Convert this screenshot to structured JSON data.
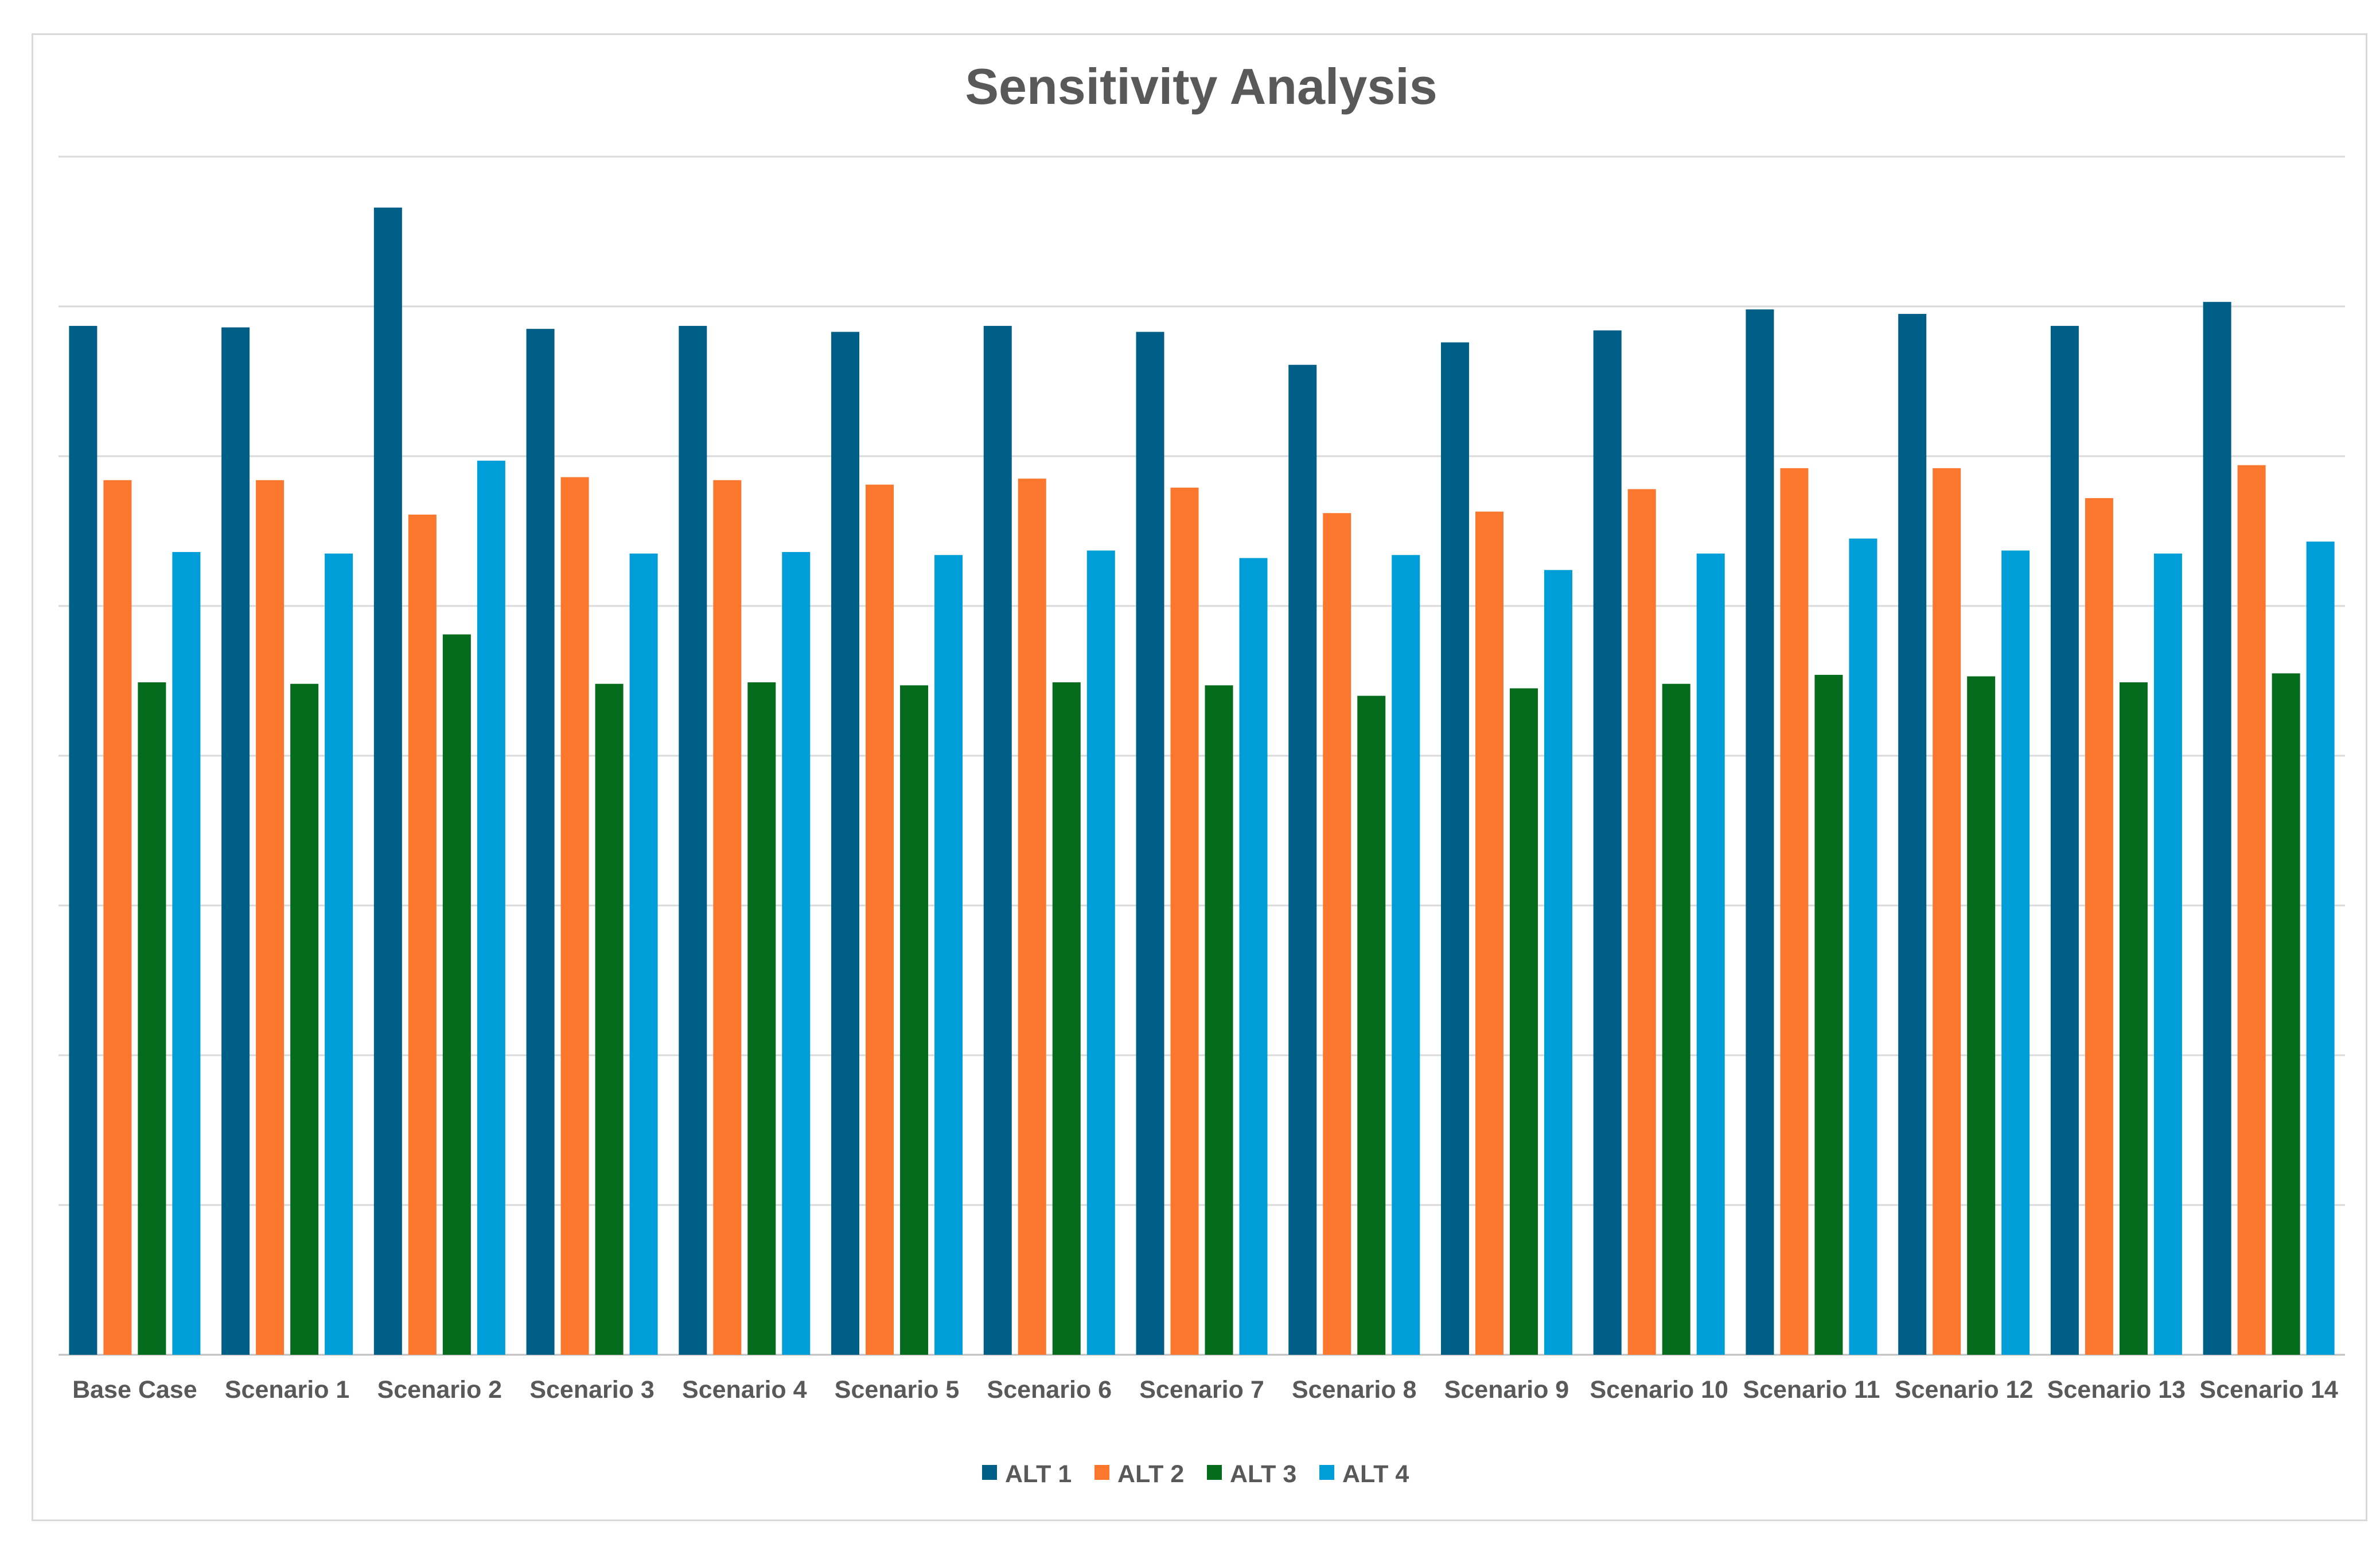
{
  "chart_data": {
    "type": "bar",
    "title": "Sensitivity Analysis",
    "xlabel": "",
    "ylabel": "",
    "ylim": [
      0,
      8
    ],
    "grid": true,
    "legend_position": "bottom",
    "categories": [
      "Base Case",
      "Scenario 1",
      "Scenario 2",
      "Scenario 3",
      "Scenario 4",
      "Scenario 5",
      "Scenario 6",
      "Scenario 7",
      "Scenario 8",
      "Scenario 9",
      "Scenario 10",
      "Scenario 11",
      "Scenario 12",
      "Scenario 13",
      "Scenario 14"
    ],
    "series": [
      {
        "name": "ALT 1",
        "color": "#005f87",
        "values": [
          6.87,
          6.86,
          7.66,
          6.85,
          6.87,
          6.83,
          6.87,
          6.83,
          6.61,
          6.76,
          6.84,
          6.98,
          6.95,
          6.87,
          7.03
        ]
      },
      {
        "name": "ALT 2",
        "color": "#fb772e",
        "values": [
          5.84,
          5.84,
          5.61,
          5.86,
          5.84,
          5.81,
          5.85,
          5.79,
          5.62,
          5.63,
          5.78,
          5.92,
          5.92,
          5.72,
          5.94
        ]
      },
      {
        "name": "ALT 3",
        "color": "#046c1c",
        "values": [
          4.49,
          4.48,
          4.81,
          4.48,
          4.49,
          4.47,
          4.49,
          4.47,
          4.4,
          4.45,
          4.48,
          4.54,
          4.53,
          4.49,
          4.55
        ]
      },
      {
        "name": "ALT 4",
        "color": "#009ed8",
        "values": [
          5.36,
          5.35,
          5.97,
          5.35,
          5.36,
          5.34,
          5.37,
          5.32,
          5.34,
          5.24,
          5.35,
          5.45,
          5.37,
          5.35,
          5.43
        ]
      }
    ]
  }
}
